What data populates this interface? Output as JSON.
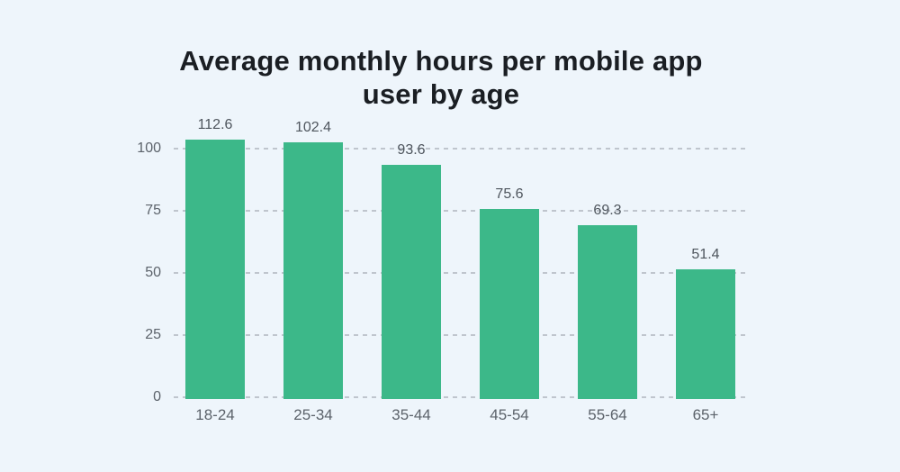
{
  "chart_data": {
    "type": "bar",
    "title": "Average monthly hours per mobile app user by age",
    "categories": [
      "18-24",
      "25-34",
      "35-44",
      "45-54",
      "55-64",
      "65+"
    ],
    "values": [
      112.6,
      102.4,
      93.6,
      75.6,
      69.3,
      51.4
    ],
    "bar_labels": [
      "112.6",
      "102.4",
      "93.6",
      "75.6",
      "69.3",
      "51.4"
    ],
    "xlabel": "",
    "ylabel": "",
    "yticks": [
      0,
      25,
      50,
      75,
      100
    ],
    "ytick_labels": [
      "0",
      "25",
      "50",
      "75",
      "100"
    ],
    "ylim": [
      0,
      103.5
    ],
    "grid": "horizontal-dashed",
    "legend": "none",
    "colors": {
      "bar": "#3cb889",
      "background": "#eef5fb",
      "gridline": "#bfc5cd",
      "axis_label": "#5c636b",
      "value_label": "#4e555d",
      "title": "#1a1e23"
    }
  }
}
